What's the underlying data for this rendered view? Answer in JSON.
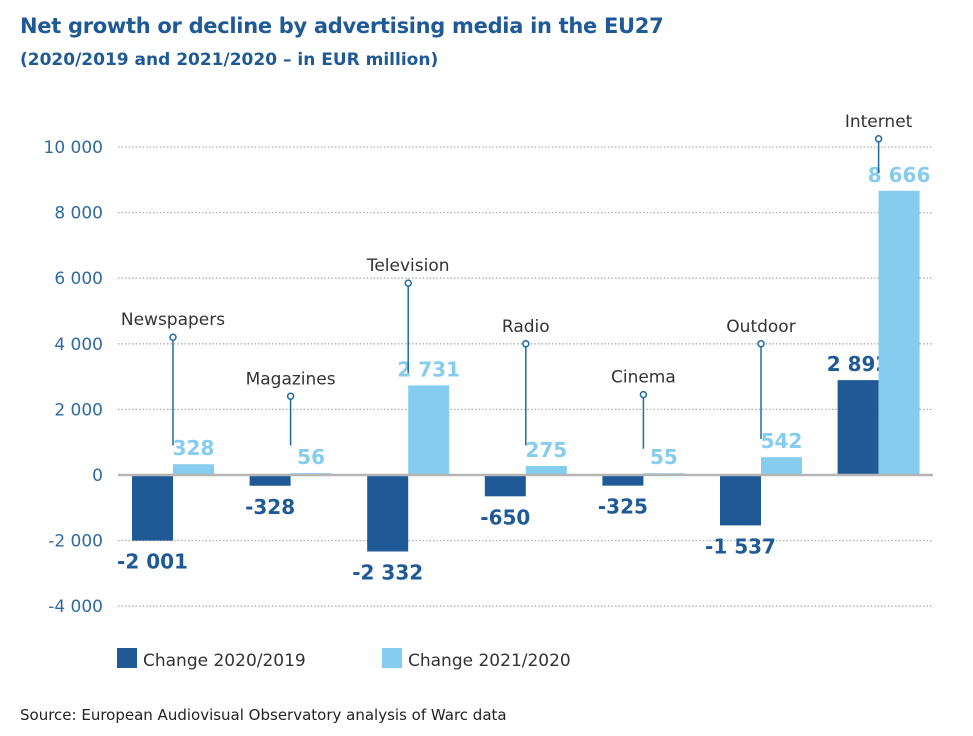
{
  "chart_data": {
    "type": "bar",
    "title": "Net growth or decline by advertising media in the EU27",
    "subtitle": "(2020/2019 and 2021/2020 – in EUR million)",
    "categories": [
      "Newspapers",
      "Magazines",
      "Television",
      "Radio",
      "Cinema",
      "Outdoor",
      "Internet"
    ],
    "series": [
      {
        "name": "Change 2020/2019",
        "color": "#1f5a96",
        "values": [
          -2001,
          -328,
          -2332,
          -650,
          -325,
          -1537,
          2892
        ],
        "labels": [
          "-2 001",
          "-328",
          "-2 332",
          "-650",
          "-325",
          "-1 537",
          "2 892"
        ]
      },
      {
        "name": "Change 2021/2020",
        "color": "#85ccef",
        "values": [
          328,
          56,
          2731,
          275,
          55,
          542,
          8666
        ],
        "labels": [
          "328",
          "56",
          "2 731",
          "275",
          "55",
          "542",
          "8 666"
        ]
      }
    ],
    "ylim": [
      -4000,
      10000
    ],
    "yticks": [
      -4000,
      -2000,
      0,
      2000,
      4000,
      6000,
      8000,
      10000
    ],
    "ytick_labels": [
      "-4 000",
      "-2 000",
      "0",
      "2 000",
      "4 000",
      "6 000",
      "8 000",
      "10 000"
    ],
    "grid": true,
    "legend": "bottom-left",
    "xlabel": "",
    "ylabel": ""
  },
  "source": "Source: European Audiovisual Observatory analysis of Warc data"
}
